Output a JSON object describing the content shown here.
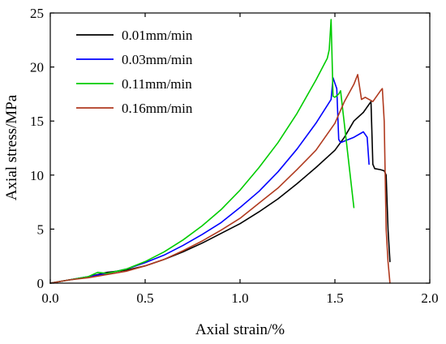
{
  "chart_data": {
    "type": "line",
    "title": "",
    "xlabel": "Axial strain/%",
    "ylabel": "Axial stress/MPa",
    "xlim": [
      0.0,
      2.0
    ],
    "ylim": [
      0,
      25
    ],
    "xticks": [
      "0.0",
      "0.5",
      "1.0",
      "1.5",
      "2.0"
    ],
    "xtick_values": [
      0.0,
      0.5,
      1.0,
      1.5,
      2.0
    ],
    "yticks": [
      "0",
      "5",
      "10",
      "15",
      "20",
      "25"
    ],
    "ytick_values": [
      0,
      5,
      10,
      15,
      20,
      25
    ],
    "grid": false,
    "legend_position": "top-left",
    "series": [
      {
        "name": "0.01mm/min",
        "color": "#000000",
        "x": [
          0.0,
          0.1,
          0.2,
          0.3,
          0.4,
          0.5,
          0.6,
          0.7,
          0.8,
          0.9,
          1.0,
          1.1,
          1.2,
          1.3,
          1.4,
          1.5,
          1.55,
          1.6,
          1.65,
          1.69,
          1.7,
          1.71,
          1.74,
          1.76,
          1.77,
          1.78,
          1.79
        ],
        "y": [
          0.0,
          0.3,
          0.6,
          1.0,
          1.2,
          1.6,
          2.2,
          2.9,
          3.7,
          4.6,
          5.5,
          6.6,
          7.8,
          9.2,
          10.7,
          12.3,
          13.5,
          15.0,
          15.8,
          16.8,
          11.0,
          10.6,
          10.5,
          10.4,
          10.0,
          5.0,
          2.0
        ]
      },
      {
        "name": "0.03mm/min",
        "color": "#0000ff",
        "x": [
          0.0,
          0.1,
          0.2,
          0.3,
          0.4,
          0.5,
          0.6,
          0.7,
          0.8,
          0.9,
          1.0,
          1.1,
          1.2,
          1.3,
          1.4,
          1.48,
          1.49,
          1.5,
          1.51,
          1.52,
          1.53,
          1.6,
          1.65,
          1.67,
          1.68
        ],
        "y": [
          0.0,
          0.3,
          0.6,
          0.9,
          1.3,
          1.9,
          2.6,
          3.5,
          4.5,
          5.6,
          7.0,
          8.5,
          10.3,
          12.4,
          14.8,
          17.0,
          19.0,
          18.5,
          18.0,
          13.3,
          13.0,
          13.5,
          14.0,
          13.5,
          11.0
        ]
      },
      {
        "name": "0.11mm/min",
        "color": "#00cc00",
        "x": [
          0.0,
          0.1,
          0.2,
          0.25,
          0.3,
          0.4,
          0.5,
          0.6,
          0.7,
          0.8,
          0.9,
          1.0,
          1.1,
          1.2,
          1.3,
          1.4,
          1.46,
          1.47,
          1.48,
          1.49,
          1.5,
          1.52,
          1.53,
          1.6
        ],
        "y": [
          0.0,
          0.3,
          0.6,
          1.0,
          0.9,
          1.3,
          2.0,
          2.9,
          4.0,
          5.3,
          6.8,
          8.6,
          10.7,
          13.0,
          15.7,
          18.8,
          20.8,
          21.6,
          24.4,
          17.3,
          17.2,
          17.5,
          17.8,
          7.0
        ]
      },
      {
        "name": "0.16mm/min",
        "color": "#b03a1f",
        "x": [
          0.0,
          0.1,
          0.2,
          0.3,
          0.4,
          0.5,
          0.6,
          0.7,
          0.8,
          0.9,
          1.0,
          1.1,
          1.2,
          1.3,
          1.4,
          1.5,
          1.55,
          1.6,
          1.62,
          1.64,
          1.66,
          1.7,
          1.74,
          1.75,
          1.76,
          1.77,
          1.78,
          1.79
        ],
        "y": [
          0.0,
          0.3,
          0.5,
          0.8,
          1.1,
          1.6,
          2.2,
          3.0,
          3.9,
          4.9,
          6.0,
          7.4,
          8.8,
          10.5,
          12.3,
          14.8,
          16.8,
          18.4,
          19.3,
          17.0,
          17.2,
          16.8,
          17.8,
          18.0,
          15.0,
          5.0,
          2.0,
          0.0
        ]
      }
    ]
  }
}
